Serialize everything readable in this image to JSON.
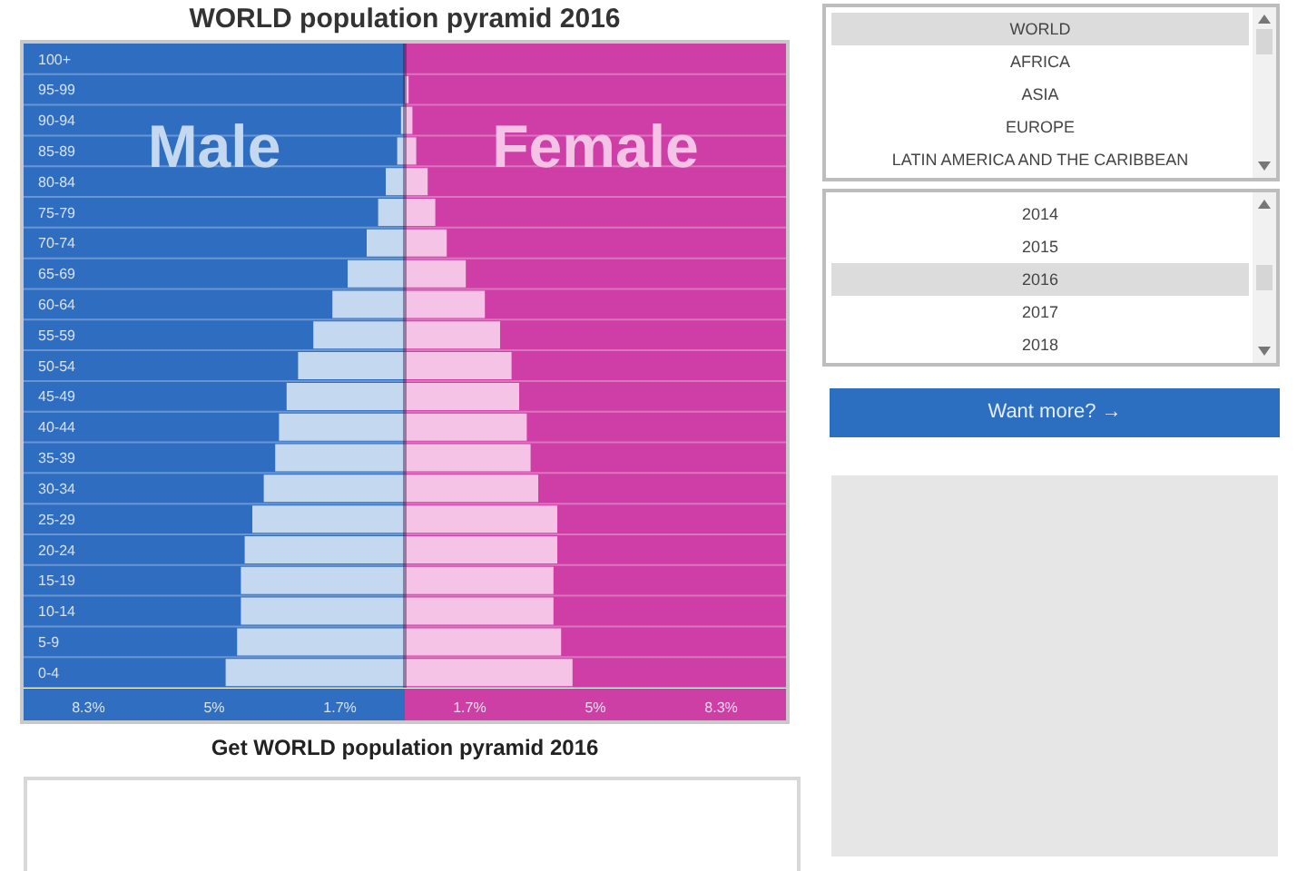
{
  "chart_data": {
    "type": "bar",
    "orientation": "horizontal",
    "stacked": true,
    "title": "WORLD population pyramid 2016",
    "categories": [
      "100+",
      "95-99",
      "90-94",
      "85-89",
      "80-84",
      "75-79",
      "70-74",
      "65-69",
      "60-64",
      "55-59",
      "50-54",
      "45-49",
      "40-44",
      "35-39",
      "30-34",
      "25-29",
      "20-24",
      "15-19",
      "10-14",
      "5-9",
      "0-4"
    ],
    "series": [
      {
        "name": "Male",
        "color": "#c4d8ef",
        "values": [
          0,
          0,
          -0.1,
          -0.2,
          -0.5,
          -0.7,
          -1.0,
          -1.5,
          -1.9,
          -2.4,
          -2.8,
          -3.1,
          -3.3,
          -3.4,
          -3.7,
          -4.0,
          -4.2,
          -4.3,
          -4.3,
          -4.4,
          -4.7
        ]
      },
      {
        "name": "Female",
        "color": "#f5c3e6",
        "values": [
          0,
          0.1,
          0.2,
          0.3,
          0.6,
          0.8,
          1.1,
          1.6,
          2.1,
          2.5,
          2.8,
          3.0,
          3.2,
          3.3,
          3.5,
          4.0,
          4.0,
          3.9,
          3.9,
          4.1,
          4.4
        ]
      }
    ],
    "xlim": [
      -10,
      10
    ],
    "xticks": [
      {
        "value": -8.3,
        "label": "8.3%"
      },
      {
        "value": -5,
        "label": "5%"
      },
      {
        "value": -1.7,
        "label": "1.7%"
      },
      {
        "value": 1.7,
        "label": "1.7%"
      },
      {
        "value": 5,
        "label": "5%"
      },
      {
        "value": 8.3,
        "label": "8.3%"
      }
    ],
    "grid": "y",
    "ref_lines": [
      {
        "axis": "x",
        "value": 0,
        "color": "#2a1f4f"
      }
    ],
    "bands": [
      {
        "axis": "x",
        "from": -10,
        "to": 0,
        "color": "#2f6ec1"
      },
      {
        "axis": "x",
        "from": 0,
        "to": 10,
        "color": "#ce3fa6"
      }
    ],
    "annotations": [
      "Get WORLD population pyramid 2016",
      "WORLD",
      "AFRICA",
      "ASIA",
      "EUROPE",
      "LATIN AMERICA AND THE CARIBBEAN",
      "2014",
      "2015",
      "2016",
      "2017",
      "2018",
      "Want more? →"
    ]
  }
}
